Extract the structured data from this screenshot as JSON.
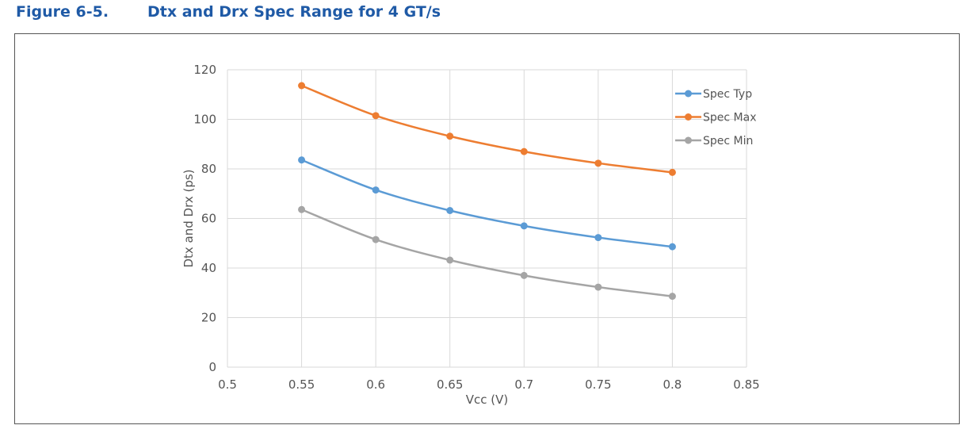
{
  "figure": {
    "number": "Figure 6-5.",
    "title": "Dtx and Drx Spec Range for 4 GT/s"
  },
  "chart_data": {
    "type": "line",
    "title": "",
    "xlabel": "Vcc (V)",
    "ylabel": "Dtx and Drx (ps)",
    "xlim": [
      0.5,
      0.85
    ],
    "ylim": [
      0,
      120
    ],
    "xticks": [
      0.5,
      0.55,
      0.6,
      0.65,
      0.7,
      0.75,
      0.8,
      0.85
    ],
    "xtick_labels": [
      "0.5",
      "0.55",
      "0.6",
      "0.65",
      "0.7",
      "0.75",
      "0.8",
      "0.85"
    ],
    "yticks": [
      0,
      20,
      40,
      60,
      80,
      100,
      120
    ],
    "ytick_labels": [
      "0",
      "20",
      "40",
      "60",
      "80",
      "100",
      "120"
    ],
    "grid": true,
    "legend_position": "top-right",
    "x": [
      0.55,
      0.6,
      0.65,
      0.7,
      0.75,
      0.8
    ],
    "series": [
      {
        "name": "Spec Typ",
        "color": "#5b9bd5",
        "values": [
          83.6,
          71.5,
          63.2,
          57.0,
          52.3,
          48.6
        ]
      },
      {
        "name": "Spec Max",
        "color": "#ed7d31",
        "values": [
          113.6,
          101.5,
          93.2,
          87.0,
          82.3,
          78.6
        ]
      },
      {
        "name": "Spec Min",
        "color": "#a5a5a5",
        "values": [
          63.6,
          51.5,
          43.2,
          37.0,
          32.3,
          28.6
        ]
      }
    ]
  }
}
